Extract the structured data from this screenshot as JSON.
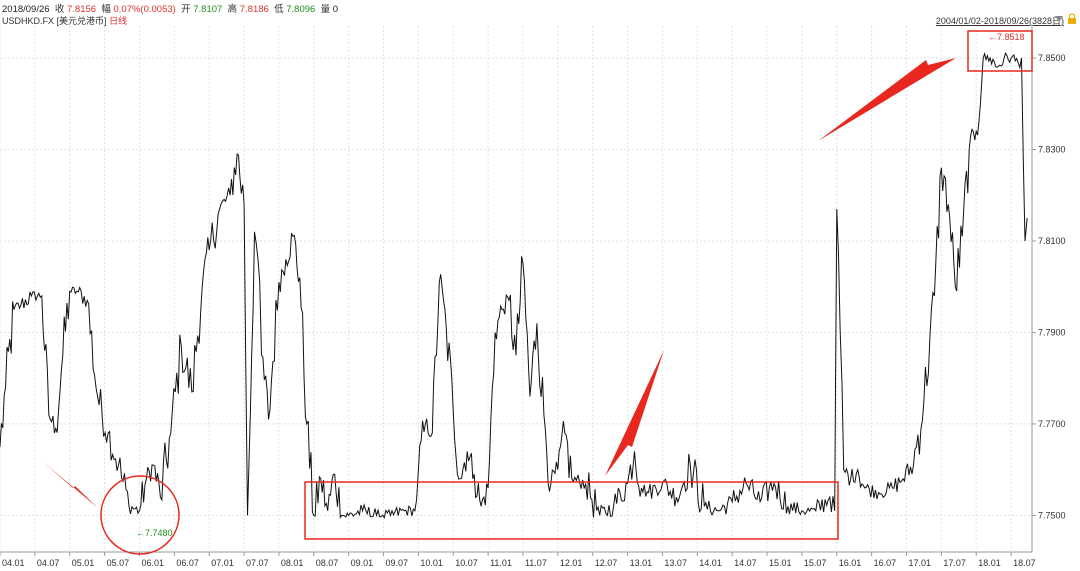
{
  "header": {
    "date": "2018/09/26",
    "close_label": "收",
    "close_value": "7.8156",
    "change_label": "幅",
    "change_value": "0.07%(0.0053)",
    "open_label": "开",
    "open_value": "7.8107",
    "high_label": "高",
    "high_value": "7.8186",
    "low_label": "低",
    "low_value": "7.8096",
    "volume_label": "量",
    "volume_value": "0"
  },
  "symbol": {
    "code": "USDHKD.FX",
    "name": "[美元兑港币]",
    "period": "日线"
  },
  "range": {
    "text": "2004/01/02-2018/09/26(3828日)"
  },
  "colors": {
    "line": "#111111",
    "grid": "#e2e2e2",
    "annotation": "#e8281e",
    "low_marker": "#1f8f1f",
    "high_marker": "#e0302a"
  },
  "annotations": {
    "low_marker": "←7.7480",
    "high_marker": "←7.8518"
  },
  "chart_data": {
    "type": "line",
    "ylim": [
      7.742,
      7.857
    ],
    "ticks_y": [
      "7.7500",
      "7.7700",
      "7.7900",
      "7.8100",
      "7.8300",
      "7.8500"
    ],
    "ticks_x": [
      "04.01",
      "04.07",
      "05.01",
      "05.07",
      "06.01",
      "06.07",
      "07.01",
      "07.07",
      "08.01",
      "08.07",
      "09.01",
      "09.07",
      "10.01",
      "10.07",
      "11.01",
      "11.07",
      "12.01",
      "12.07",
      "13.01",
      "13.07",
      "14.01",
      "14.07",
      "15.01",
      "15.07",
      "16.01",
      "16.07",
      "17.01",
      "17.07",
      "18.01",
      "18.07"
    ],
    "series": [
      {
        "x": [
          2004.0,
          2004.08,
          2004.2,
          2004.3,
          2004.45,
          2004.6,
          2004.7,
          2004.8,
          2004.9,
          2005.0,
          2005.1,
          2005.25,
          2005.4,
          2005.55,
          2005.7,
          2005.85,
          2006.0,
          2006.1,
          2006.2,
          2006.3,
          2006.45,
          2006.6,
          2006.75,
          2006.9,
          2007.0,
          2007.15,
          2007.3,
          2007.4,
          2007.5,
          2007.55,
          2007.65,
          2007.7,
          2007.75,
          2007.85,
          2008.0,
          2008.1,
          2008.2,
          2008.3,
          2008.4,
          2008.5,
          2008.6,
          2008.7,
          2008.8,
          2008.9,
          2009.0,
          2009.2,
          2009.4,
          2009.6,
          2009.8,
          2009.95,
          2010.0,
          2010.1,
          2010.2,
          2010.3,
          2010.4,
          2010.5,
          2010.6,
          2010.7,
          2010.8,
          2010.9,
          2011.0,
          2011.1,
          2011.2,
          2011.3,
          2011.4,
          2011.5,
          2011.6,
          2011.7,
          2011.8,
          2011.9,
          2012.0,
          2012.1,
          2012.2,
          2012.4,
          2012.6,
          2012.8,
          2013.0,
          2013.1,
          2013.2,
          2013.3,
          2013.5,
          2013.7,
          2013.9,
          2014.1,
          2014.3,
          2014.5,
          2014.7,
          2014.9,
          2015.1,
          2015.3,
          2015.5,
          2015.7,
          2015.9,
          2015.97,
          2016.0,
          2016.05,
          2016.1,
          2016.2,
          2016.3,
          2016.4,
          2016.6,
          2016.8,
          2016.95,
          2017.1,
          2017.25,
          2017.4,
          2017.5,
          2017.6,
          2017.7,
          2017.8,
          2017.9,
          2018.0,
          2018.1,
          2018.2,
          2018.3,
          2018.4,
          2018.5,
          2018.6,
          2018.65,
          2018.7,
          2018.73
        ],
        "y": [
          7.765,
          7.778,
          7.795,
          7.796,
          7.798,
          7.798,
          7.772,
          7.769,
          7.785,
          7.799,
          7.799,
          7.797,
          7.776,
          7.768,
          7.761,
          7.752,
          7.751,
          7.758,
          7.761,
          7.754,
          7.768,
          7.787,
          7.777,
          7.8,
          7.808,
          7.817,
          7.82,
          7.829,
          7.818,
          7.75,
          7.812,
          7.806,
          7.785,
          7.771,
          7.801,
          7.806,
          7.811,
          7.802,
          7.77,
          7.75,
          7.758,
          7.751,
          7.759,
          7.75,
          7.75,
          7.751,
          7.75,
          7.75,
          7.751,
          7.751,
          7.76,
          7.77,
          7.768,
          7.801,
          7.791,
          7.773,
          7.758,
          7.764,
          7.759,
          7.752,
          7.756,
          7.79,
          7.795,
          7.797,
          7.785,
          7.805,
          7.776,
          7.792,
          7.772,
          7.757,
          7.76,
          7.768,
          7.758,
          7.757,
          7.75,
          7.752,
          7.757,
          7.764,
          7.756,
          7.755,
          7.757,
          7.754,
          7.761,
          7.752,
          7.751,
          7.753,
          7.757,
          7.753,
          7.757,
          7.752,
          7.751,
          7.751,
          7.754,
          7.751,
          7.817,
          7.79,
          7.76,
          7.758,
          7.76,
          7.756,
          7.755,
          7.756,
          7.758,
          7.761,
          7.775,
          7.798,
          7.826,
          7.818,
          7.8,
          7.811,
          7.83,
          7.834,
          7.85,
          7.85,
          7.848,
          7.85,
          7.85,
          7.849,
          7.85,
          7.81,
          7.815
        ]
      }
    ]
  }
}
